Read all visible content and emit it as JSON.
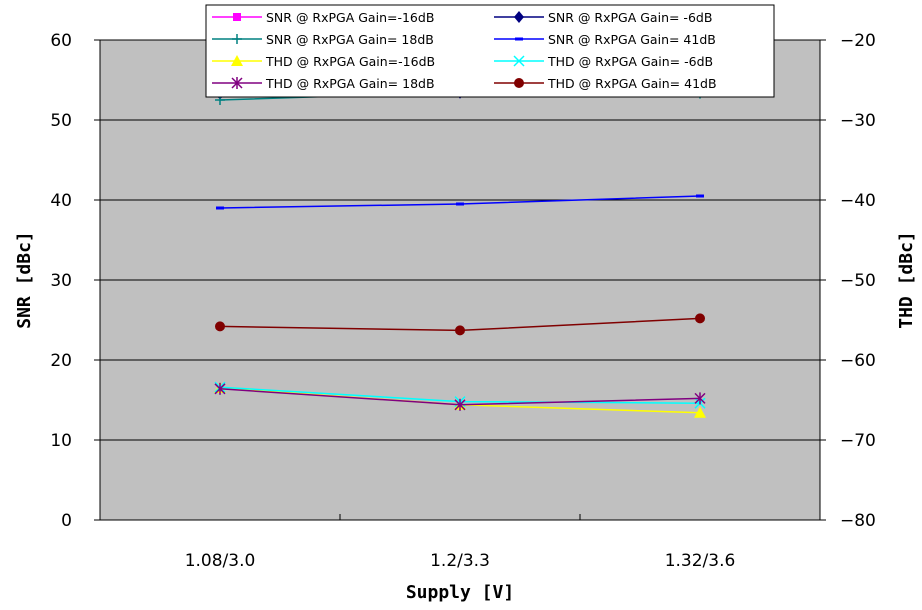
{
  "chart_data": {
    "type": "line",
    "categories": [
      "1.08/3.0",
      "1.2/3.3",
      "1.32/3.6"
    ],
    "xlabel": "Supply [V]",
    "ylabel_left": "SNR [dBc]",
    "ylabel_right": "THD [dBc]",
    "ylim_left": [
      0,
      60
    ],
    "ylim_right": [
      -80,
      -20
    ],
    "yticks_left": [
      0,
      10,
      20,
      30,
      40,
      50,
      60
    ],
    "yticks_right": [
      -80,
      -70,
      -60,
      -50,
      -40,
      -30,
      -20
    ],
    "grid": "horizontal",
    "plot_background": "#c0c0c0",
    "legend_position": "top",
    "series": [
      {
        "name": "SNR @ RxPGA Gain=-16dB",
        "axis": "left",
        "color": "#ff00ff",
        "marker": "square",
        "values": [
          53.5,
          53.7,
          53.8
        ]
      },
      {
        "name": "SNR @ RxPGA Gain= -6dB",
        "axis": "left",
        "color": "#000080",
        "marker": "diamond",
        "values": [
          53.3,
          53.4,
          54.2
        ]
      },
      {
        "name": "SNR @ RxPGA Gain= 18dB",
        "axis": "left",
        "color": "#008080",
        "marker": "plus",
        "values": [
          52.5,
          53.5,
          53.3
        ]
      },
      {
        "name": "SNR @ RxPGA Gain= 41dB",
        "axis": "left",
        "color": "#0000ff",
        "marker": "dash",
        "values": [
          39.0,
          39.5,
          40.5
        ]
      },
      {
        "name": "THD @ RxPGA Gain=-16dB",
        "axis": "right",
        "color": "#ffff00",
        "marker": "triangle",
        "values": [
          -63.5,
          -65.6,
          -66.6
        ]
      },
      {
        "name": "THD @ RxPGA Gain= -6dB",
        "axis": "right",
        "color": "#00ffff",
        "marker": "x",
        "values": [
          -63.4,
          -65.2,
          -65.4
        ]
      },
      {
        "name": "THD @ RxPGA Gain= 18dB",
        "axis": "right",
        "color": "#800080",
        "marker": "asterisk",
        "values": [
          -63.6,
          -65.6,
          -64.8
        ]
      },
      {
        "name": "THD @ RxPGA Gain= 41dB",
        "axis": "right",
        "color": "#800000",
        "marker": "circle",
        "values": [
          -55.8,
          -56.3,
          -54.8
        ]
      }
    ]
  }
}
